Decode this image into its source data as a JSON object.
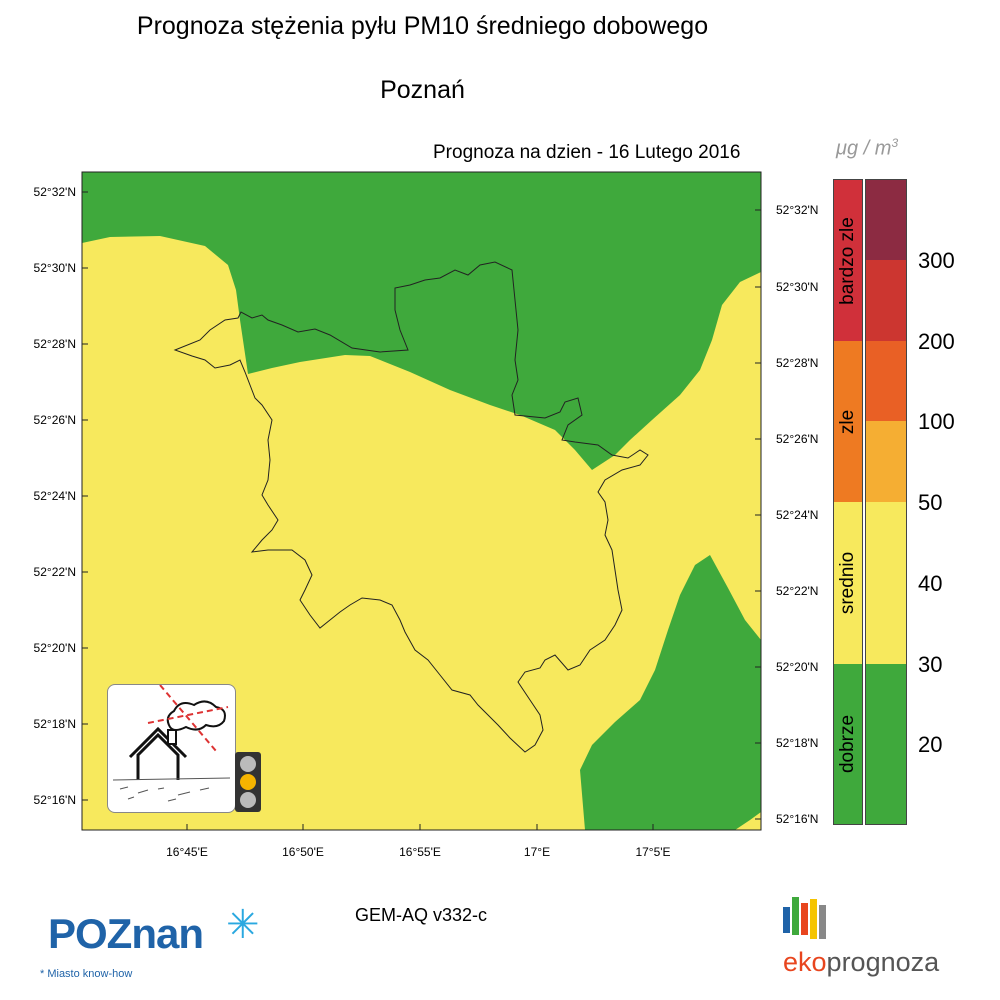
{
  "header": {
    "title": "Prognoza stężenia pyłu PM10 średniego dobowego",
    "city": "Poznań",
    "forecast_date": "Prognoza na dzien -  16 Lutego 2016",
    "unit_mu": "μg",
    "unit_sep": " / m",
    "unit_exp": "3"
  },
  "map": {
    "lat_ticks_left": [
      "52°32'N",
      "52°30'N",
      "52°28'N",
      "52°26'N",
      "52°24'N",
      "52°22'N",
      "52°20'N",
      "52°18'N",
      "52°16'N"
    ],
    "lat_ticks_right": [
      "52°32'N",
      "52°30'N",
      "52°28'N",
      "52°26'N",
      "52°24'N",
      "52°22'N",
      "52°20'N",
      "52°18'N",
      "52°16'N"
    ],
    "lon_ticks": [
      "16°45'E",
      "16°50'E",
      "16°55'E",
      "17°E",
      "17°5'E"
    ],
    "fill_colors": {
      "dobrze": "#3fa93c",
      "srednio": "#f7e95d",
      "border": "#222222"
    }
  },
  "legend": {
    "categories": [
      {
        "label": "bardzo zle",
        "color": "#d0303a"
      },
      {
        "label": "zle",
        "color": "#ee7a22"
      },
      {
        "label": "srednio",
        "color": "#f7e95d"
      },
      {
        "label": "dobrze",
        "color": "#3fa93c"
      }
    ],
    "value_colors": [
      "#8c2b42",
      "#cc3630",
      "#e96025",
      "#f5ae33",
      "#f7e95d",
      "#f7e95d",
      "#3fa93c",
      "#3fa93c"
    ],
    "levels": [
      "300",
      "200",
      "100",
      "50",
      "40",
      "30",
      "20"
    ]
  },
  "footer": {
    "model": "GEM-AQ v332-c",
    "poznan_logo": "POZnan",
    "poznan_tagline": "* Miasto know-how",
    "eko_prefix": "eko",
    "eko_suffix": "prognoza"
  }
}
